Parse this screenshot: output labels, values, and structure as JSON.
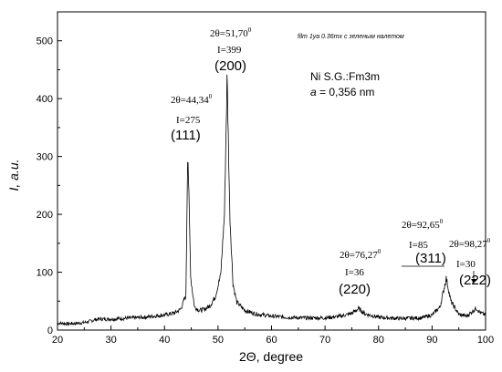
{
  "chart_data": {
    "type": "line",
    "xlabel": "2Θ, degree",
    "ylabel": "I, a.u.",
    "xlim": [
      20,
      100
    ],
    "ylim": [
      0,
      550
    ],
    "x_ticks": [
      20,
      30,
      40,
      50,
      60,
      70,
      80,
      90,
      100
    ],
    "y_ticks": [
      0,
      100,
      200,
      300,
      400,
      500
    ],
    "grid": false,
    "note": "film 1ya 0.36mx с зеленым налетом",
    "material": "Ni S.G.:Fm3m",
    "lattice": "a = 0,356 nm",
    "lattice_symbol": "a",
    "lattice_value": " = 0,356 nm",
    "background": [
      [
        20,
        12
      ],
      [
        22,
        11
      ],
      [
        24,
        12
      ],
      [
        25,
        13
      ],
      [
        26,
        15
      ],
      [
        27,
        18
      ],
      [
        28,
        19
      ],
      [
        30,
        19
      ],
      [
        32,
        20
      ],
      [
        34,
        21
      ],
      [
        36,
        22
      ],
      [
        38,
        24
      ],
      [
        40,
        26
      ],
      [
        42,
        30
      ],
      [
        43,
        36
      ],
      [
        44,
        60
      ],
      [
        44.34,
        318
      ],
      [
        44.9,
        90
      ],
      [
        45.6,
        40
      ],
      [
        46.5,
        34
      ],
      [
        47.5,
        36
      ],
      [
        48.5,
        42
      ],
      [
        49.5,
        58
      ],
      [
        50.5,
        95
      ],
      [
        51.2,
        200
      ],
      [
        51.7,
        440
      ],
      [
        52.2,
        200
      ],
      [
        52.8,
        80
      ],
      [
        53.5,
        48
      ],
      [
        55,
        34
      ],
      [
        57,
        28
      ],
      [
        60,
        24
      ],
      [
        63,
        22
      ],
      [
        66,
        21
      ],
      [
        70,
        21
      ],
      [
        73,
        24
      ],
      [
        75,
        29
      ],
      [
        76.27,
        37
      ],
      [
        77.5,
        28
      ],
      [
        80,
        22
      ],
      [
        84,
        20
      ],
      [
        88,
        21
      ],
      [
        90,
        26
      ],
      [
        91.5,
        40
      ],
      [
        92.65,
        90
      ],
      [
        93.5,
        50
      ],
      [
        95,
        27
      ],
      [
        96.5,
        24
      ],
      [
        98.27,
        38
      ],
      [
        99,
        30
      ],
      [
        100,
        26
      ]
    ],
    "peaks": [
      {
        "two_theta_label": "2θ=44,34",
        "sup": "0",
        "i_label": "I=275",
        "hkl": "(111)",
        "x": 44.34,
        "y": 318
      },
      {
        "two_theta_label": "2θ=51,70",
        "sup": "0",
        "i_label": "I=399",
        "hkl": "(200)",
        "x": 51.7,
        "y": 440
      },
      {
        "two_theta_label": "2θ=76,27",
        "sup": "0",
        "i_label": "I=36",
        "hkl": "(220)",
        "x": 76.27,
        "y": 37
      },
      {
        "two_theta_label": "2θ=92,65",
        "sup": "0",
        "i_label": "I=85",
        "hkl": "(311)",
        "x": 92.65,
        "y": 90
      },
      {
        "two_theta_label": "2θ=98,27",
        "sup": "0",
        "i_label": "I=30",
        "hkl": "(222)",
        "x": 98.27,
        "y": 38
      }
    ]
  }
}
